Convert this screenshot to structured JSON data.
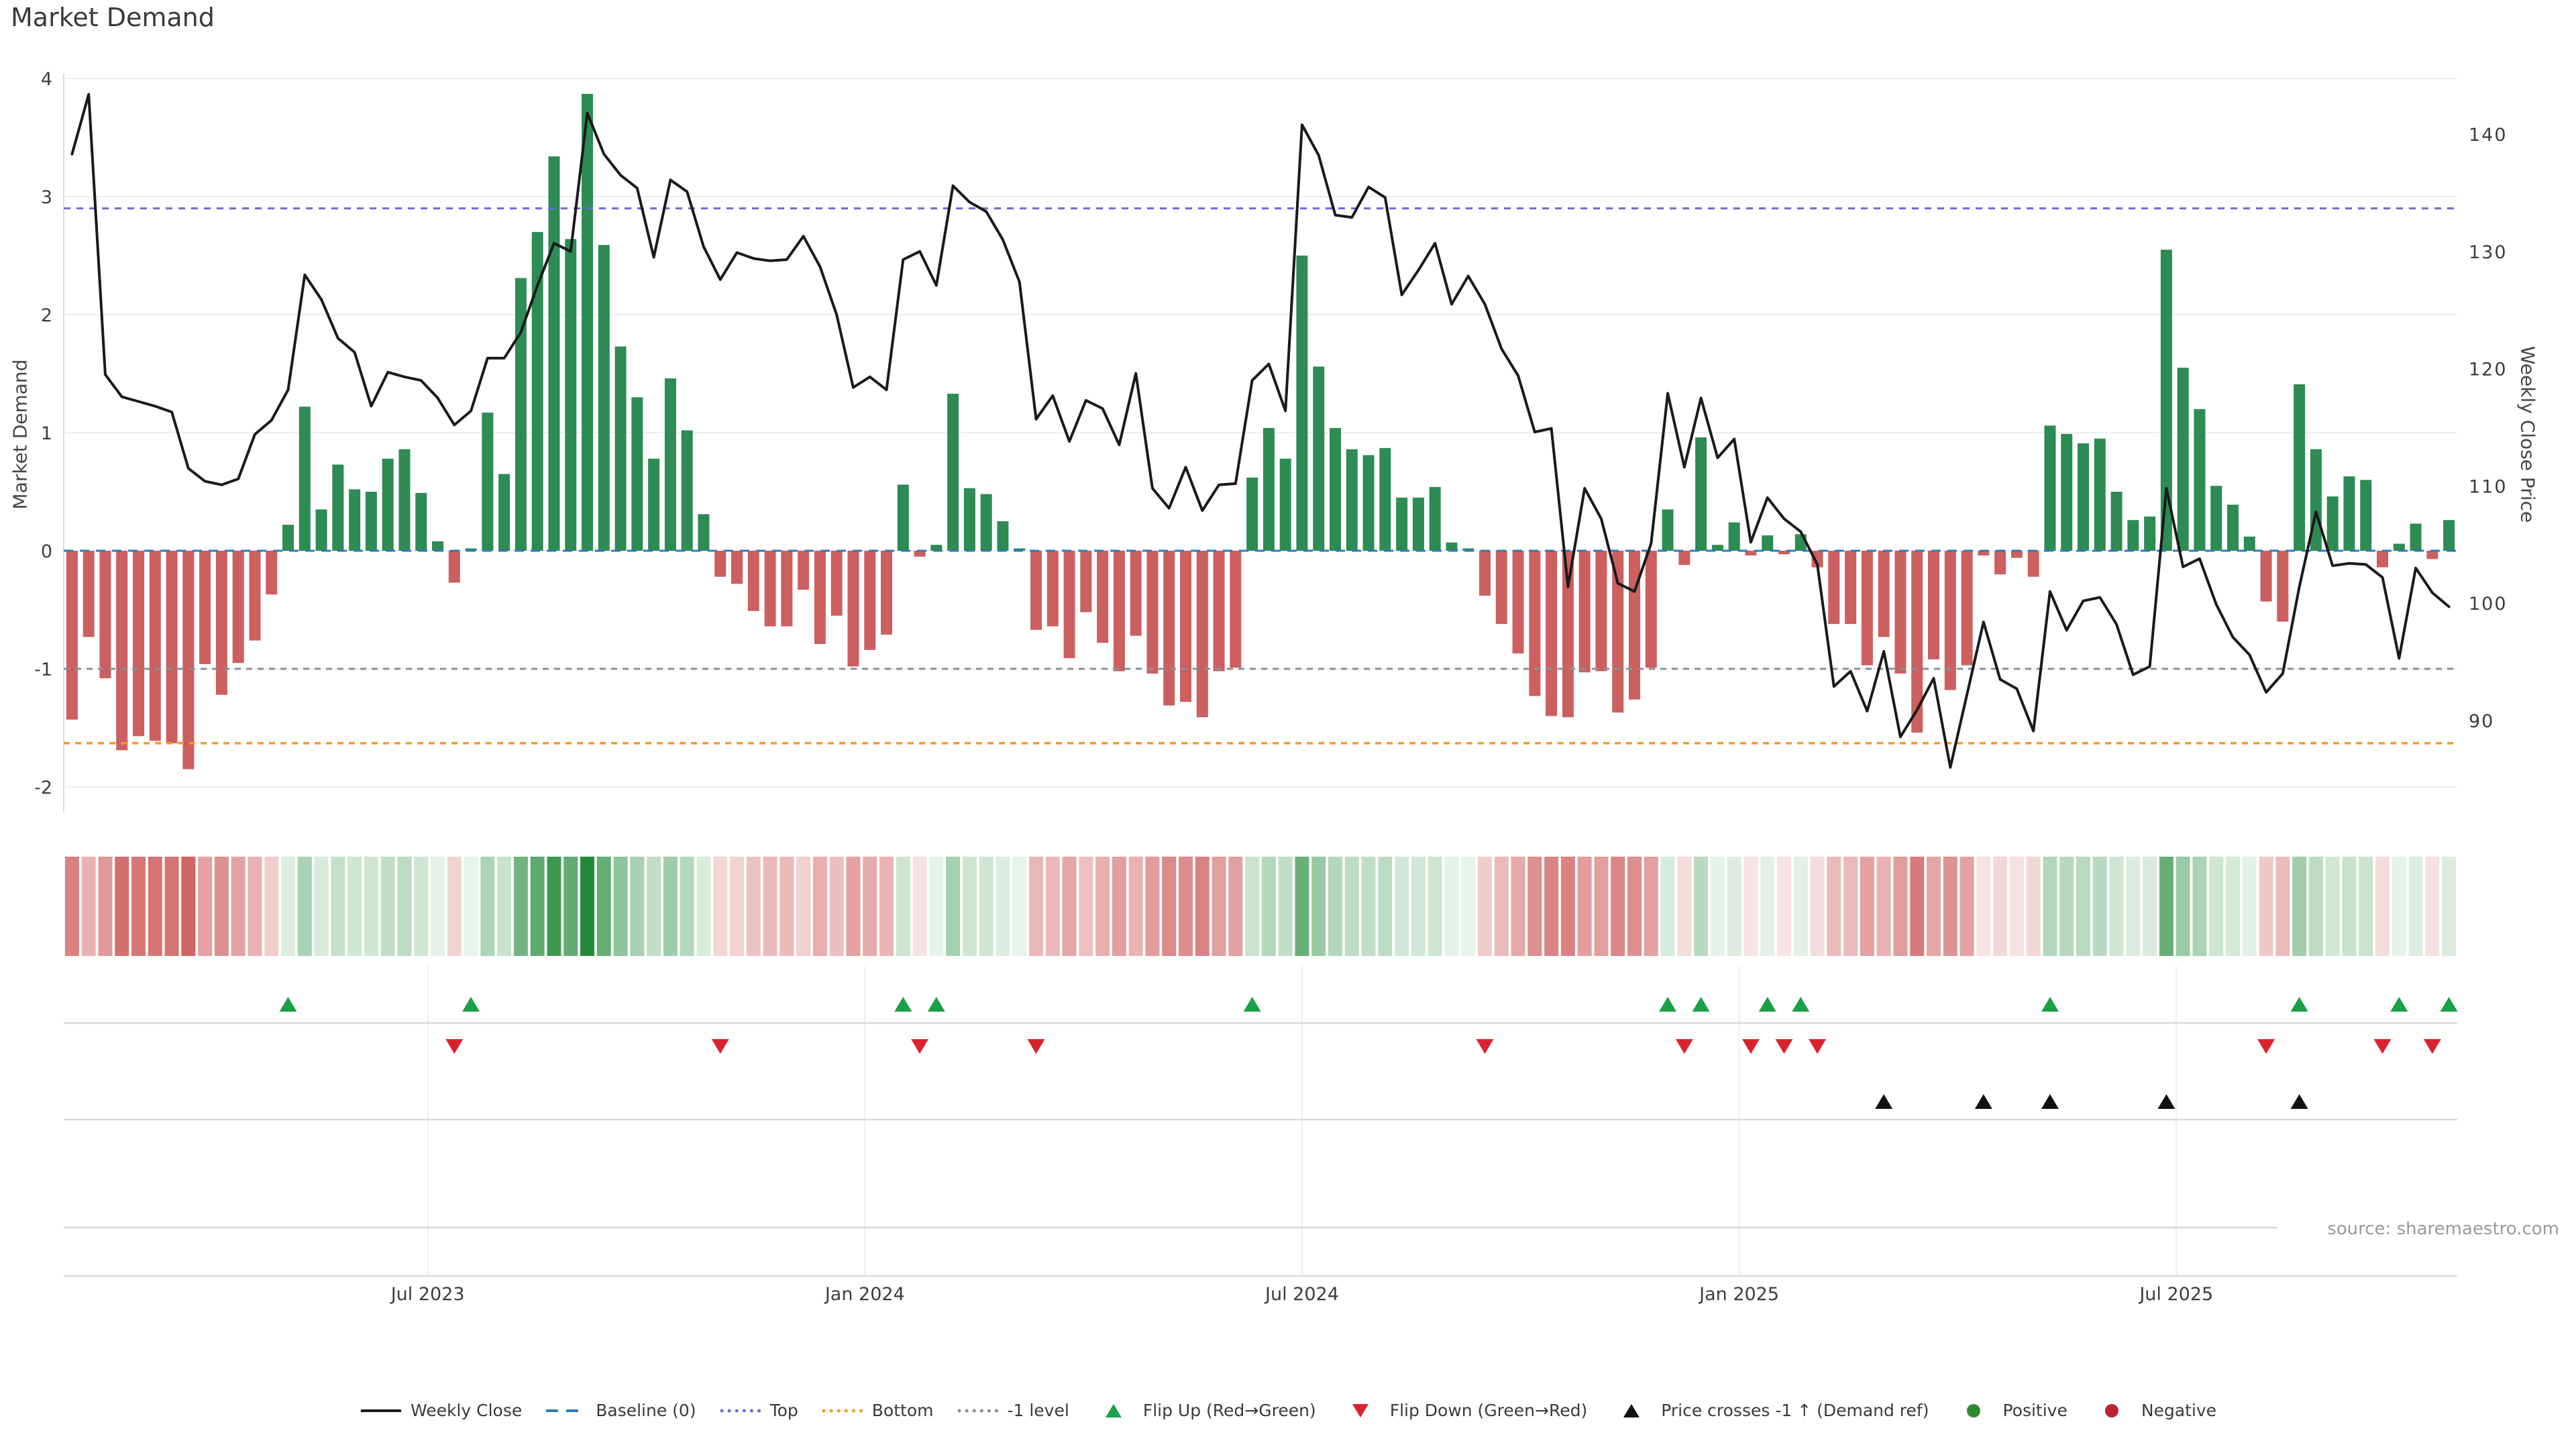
{
  "title": "Market Demand",
  "left_axis": {
    "label": "Market Demand",
    "ticks": [
      4,
      3,
      2,
      1,
      0,
      -1,
      -2
    ]
  },
  "right_axis": {
    "label": "Weekly Close Price",
    "ticks": [
      140,
      130,
      120,
      110,
      100,
      90
    ]
  },
  "x_axis": {
    "ticks": [
      {
        "label": "Jul 2023",
        "pos": 21.4
      },
      {
        "label": "Jan 2024",
        "pos": 47.7
      },
      {
        "label": "Jul 2024",
        "pos": 74.0
      },
      {
        "label": "Jan 2025",
        "pos": 100.3
      },
      {
        "label": "Jul 2025",
        "pos": 126.6
      }
    ]
  },
  "source": "source: sharemaestro.com",
  "colors": {
    "bar_positive": "#2d8b54",
    "bar_negative": "#cc5f5f",
    "price_line": "#1a1a1a",
    "baseline": "#2b7bba",
    "top_level": "#6b6bd6",
    "bottom_level": "#f59a23",
    "minus1_level": "#8a8f98",
    "flip_up": "#1aa045",
    "flip_down": "#d8232e",
    "price_cross": "#111111",
    "positive_dot": "#2e8b2e",
    "negative_dot": "#bf2330",
    "gridline": "#eceff2",
    "divider": "#d7dadd",
    "axis_text": "#3d3d3d",
    "source_text": "#9a9a9a"
  },
  "legend": [
    {
      "id": "weekly-close",
      "label": "Weekly Close",
      "swatch": "line",
      "color": "#1a1a1a"
    },
    {
      "id": "baseline",
      "label": "Baseline (0)",
      "swatch": "dashed",
      "color": "#2b7bba"
    },
    {
      "id": "top",
      "label": "Top",
      "swatch": "dotted",
      "color": "#6b6bd6"
    },
    {
      "id": "bottom",
      "label": "Bottom",
      "swatch": "dotted",
      "color": "#f59a23"
    },
    {
      "id": "minus1-level",
      "label": "-1 level",
      "swatch": "dotted",
      "color": "#8a8f98"
    },
    {
      "id": "flip-up",
      "label": "Flip Up (Red→Green)",
      "swatch": "tri-up",
      "color": "#1aa045"
    },
    {
      "id": "flip-down",
      "label": "Flip Down (Green→Red)",
      "swatch": "tri-down",
      "color": "#d8232e"
    },
    {
      "id": "price-cross",
      "label": "Price crosses -1 ↑ (Demand ref)",
      "swatch": "tri-up",
      "color": "#111111"
    },
    {
      "id": "positive",
      "label": "Positive",
      "swatch": "dot",
      "color": "#2e8b2e"
    },
    {
      "id": "negative",
      "label": "Negative",
      "swatch": "dot",
      "color": "#bf2330"
    }
  ],
  "chart_data": {
    "type": "bar",
    "weeks": 144,
    "title": "Market Demand",
    "ylabel_left": "Market Demand",
    "ylabel_right": "Weekly Close Price",
    "ylim_left": [
      -2.2,
      4.2
    ],
    "ylim_right": [
      84,
      143.5
    ],
    "levels": {
      "baseline": 0,
      "top": 2.9,
      "bottom": -1.63,
      "minus1": -1
    },
    "series": [
      {
        "name": "Market Demand",
        "type": "bar",
        "axis": "left",
        "values": [
          -1.43,
          -0.73,
          -1.08,
          -1.69,
          -1.57,
          -1.61,
          -1.63,
          -1.85,
          -0.96,
          -1.22,
          -0.95,
          -0.76,
          -0.37,
          0.22,
          1.22,
          0.35,
          0.73,
          0.52,
          0.5,
          0.78,
          0.86,
          0.49,
          0.08,
          -0.27,
          0.02,
          1.17,
          0.65,
          2.31,
          2.7,
          3.34,
          2.64,
          3.87,
          2.59,
          1.73,
          1.3,
          0.78,
          1.46,
          1.02,
          0.31,
          -0.22,
          -0.28,
          -0.51,
          -0.64,
          -0.64,
          -0.33,
          -0.79,
          -0.55,
          -0.98,
          -0.84,
          -0.71,
          0.56,
          -0.05,
          0.05,
          1.33,
          0.53,
          0.48,
          0.25,
          0.02,
          -0.67,
          -0.64,
          -0.91,
          -0.52,
          -0.78,
          -1.02,
          -0.72,
          -1.04,
          -1.31,
          -1.28,
          -1.41,
          -1.02,
          -0.99,
          0.62,
          1.04,
          0.78,
          2.5,
          1.56,
          1.04,
          0.86,
          0.81,
          0.87,
          0.45,
          0.45,
          0.54,
          0.07,
          0.02,
          -0.38,
          -0.62,
          -0.87,
          -1.23,
          -1.4,
          -1.41,
          -1.03,
          -1.02,
          -1.37,
          -1.26,
          -0.99,
          0.35,
          -0.12,
          0.96,
          0.05,
          0.24,
          -0.04,
          0.13,
          -0.03,
          0.14,
          -0.14,
          -0.62,
          -0.62,
          -0.97,
          -0.73,
          -1.04,
          -1.54,
          -0.92,
          -1.18,
          -0.97,
          -0.04,
          -0.2,
          -0.06,
          -0.22,
          1.06,
          0.99,
          0.91,
          0.95,
          0.5,
          0.26,
          0.29,
          2.55,
          1.55,
          1.2,
          0.55,
          0.39,
          0.12,
          -0.43,
          -0.6,
          1.41,
          0.86,
          0.46,
          0.63,
          0.6,
          -0.14,
          0.06,
          0.23,
          -0.07,
          0.26
        ]
      },
      {
        "name": "Weekly Close",
        "type": "line",
        "axis": "right",
        "values": [
          138.3,
          143.4,
          119.5,
          117.6,
          117.2,
          116.8,
          116.3,
          111.5,
          110.4,
          110.1,
          110.6,
          114.4,
          115.6,
          118.2,
          128.0,
          125.9,
          122.6,
          121.4,
          116.8,
          119.7,
          119.3,
          119.0,
          117.5,
          115.2,
          116.4,
          120.9,
          120.9,
          123.1,
          127.1,
          130.7,
          130.0,
          141.8,
          138.3,
          136.5,
          135.4,
          129.5,
          136.1,
          135.1,
          130.4,
          127.6,
          129.9,
          129.4,
          129.2,
          129.3,
          131.3,
          128.7,
          124.6,
          118.4,
          119.3,
          118.2,
          129.3,
          130.0,
          127.1,
          135.6,
          134.2,
          133.4,
          131.0,
          127.4,
          115.7,
          117.7,
          113.8,
          117.3,
          116.6,
          113.5,
          119.6,
          109.8,
          108.1,
          111.6,
          107.9,
          110.1,
          110.2,
          119.0,
          120.4,
          116.4,
          140.8,
          138.2,
          133.1,
          132.9,
          135.5,
          134.6,
          126.3,
          128.4,
          130.7,
          125.5,
          127.9,
          125.5,
          121.7,
          119.4,
          114.6,
          114.9,
          101.4,
          109.8,
          107.2,
          101.7,
          101.0,
          105.1,
          117.9,
          111.6,
          117.5,
          112.4,
          114.0,
          105.2,
          109.0,
          107.2,
          106.1,
          103.3,
          92.9,
          94.2,
          90.8,
          95.9,
          88.6,
          90.9,
          93.6,
          86.0,
          92.2,
          98.4,
          93.5,
          92.7,
          89.1,
          101.0,
          97.7,
          100.2,
          100.5,
          98.2,
          93.9,
          94.6,
          109.8,
          103.1,
          103.8,
          99.9,
          97.1,
          95.6,
          92.4,
          94.0,
          101.4,
          107.8,
          103.2,
          103.4,
          103.3,
          102.2,
          95.3,
          103.0,
          100.9,
          99.7
        ]
      }
    ],
    "heatmap": {
      "note": "strip colored from bar values: green shades positive, red shades negative"
    },
    "markers": {
      "flip_up_weeks": [
        13,
        24,
        50,
        52,
        71,
        96,
        98,
        102,
        104,
        119,
        134,
        140,
        143
      ],
      "flip_down_weeks": [
        23,
        39,
        51,
        58,
        85,
        97,
        101,
        103,
        105,
        132,
        139,
        142
      ],
      "price_cross_weeks": [
        109,
        115,
        119,
        126,
        134
      ]
    },
    "legend_position": "bottom",
    "grid": true
  }
}
